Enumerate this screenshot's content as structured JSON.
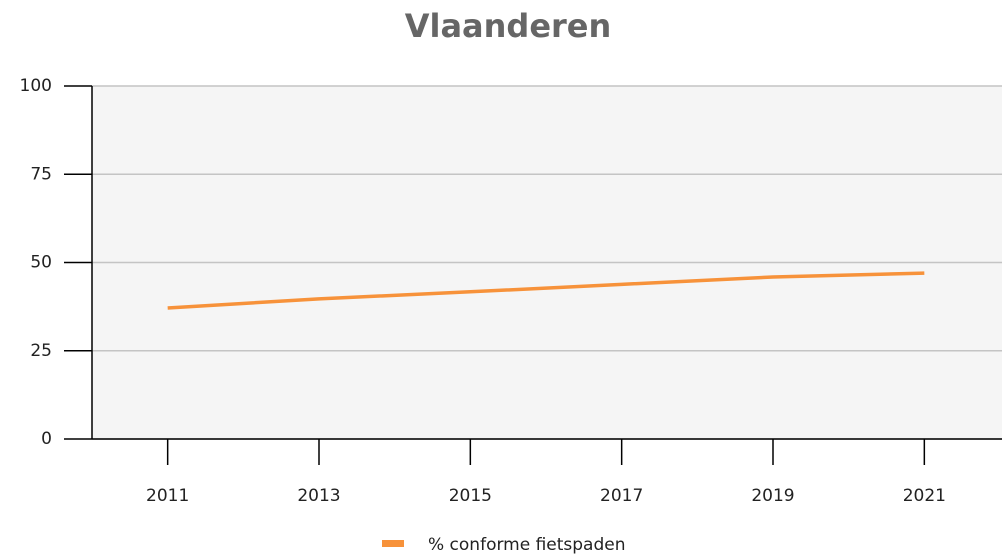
{
  "chart_data": {
    "type": "line",
    "title": "Vlaanderen",
    "x": [
      2011,
      2013,
      2015,
      2017,
      2019,
      2021
    ],
    "series": [
      {
        "name": "% conforme fietspaden",
        "color": "#f7923a",
        "values": [
          37.1,
          39.7,
          41.7,
          43.8,
          45.9,
          47.0
        ]
      }
    ],
    "xlim": [
      2010,
      2022
    ],
    "xticks": [
      2011,
      2013,
      2015,
      2017,
      2019,
      2021
    ],
    "ylim": [
      0,
      100
    ],
    "yticks": [
      0,
      25,
      50,
      75,
      100
    ],
    "grid": true,
    "legend": "bottom"
  }
}
